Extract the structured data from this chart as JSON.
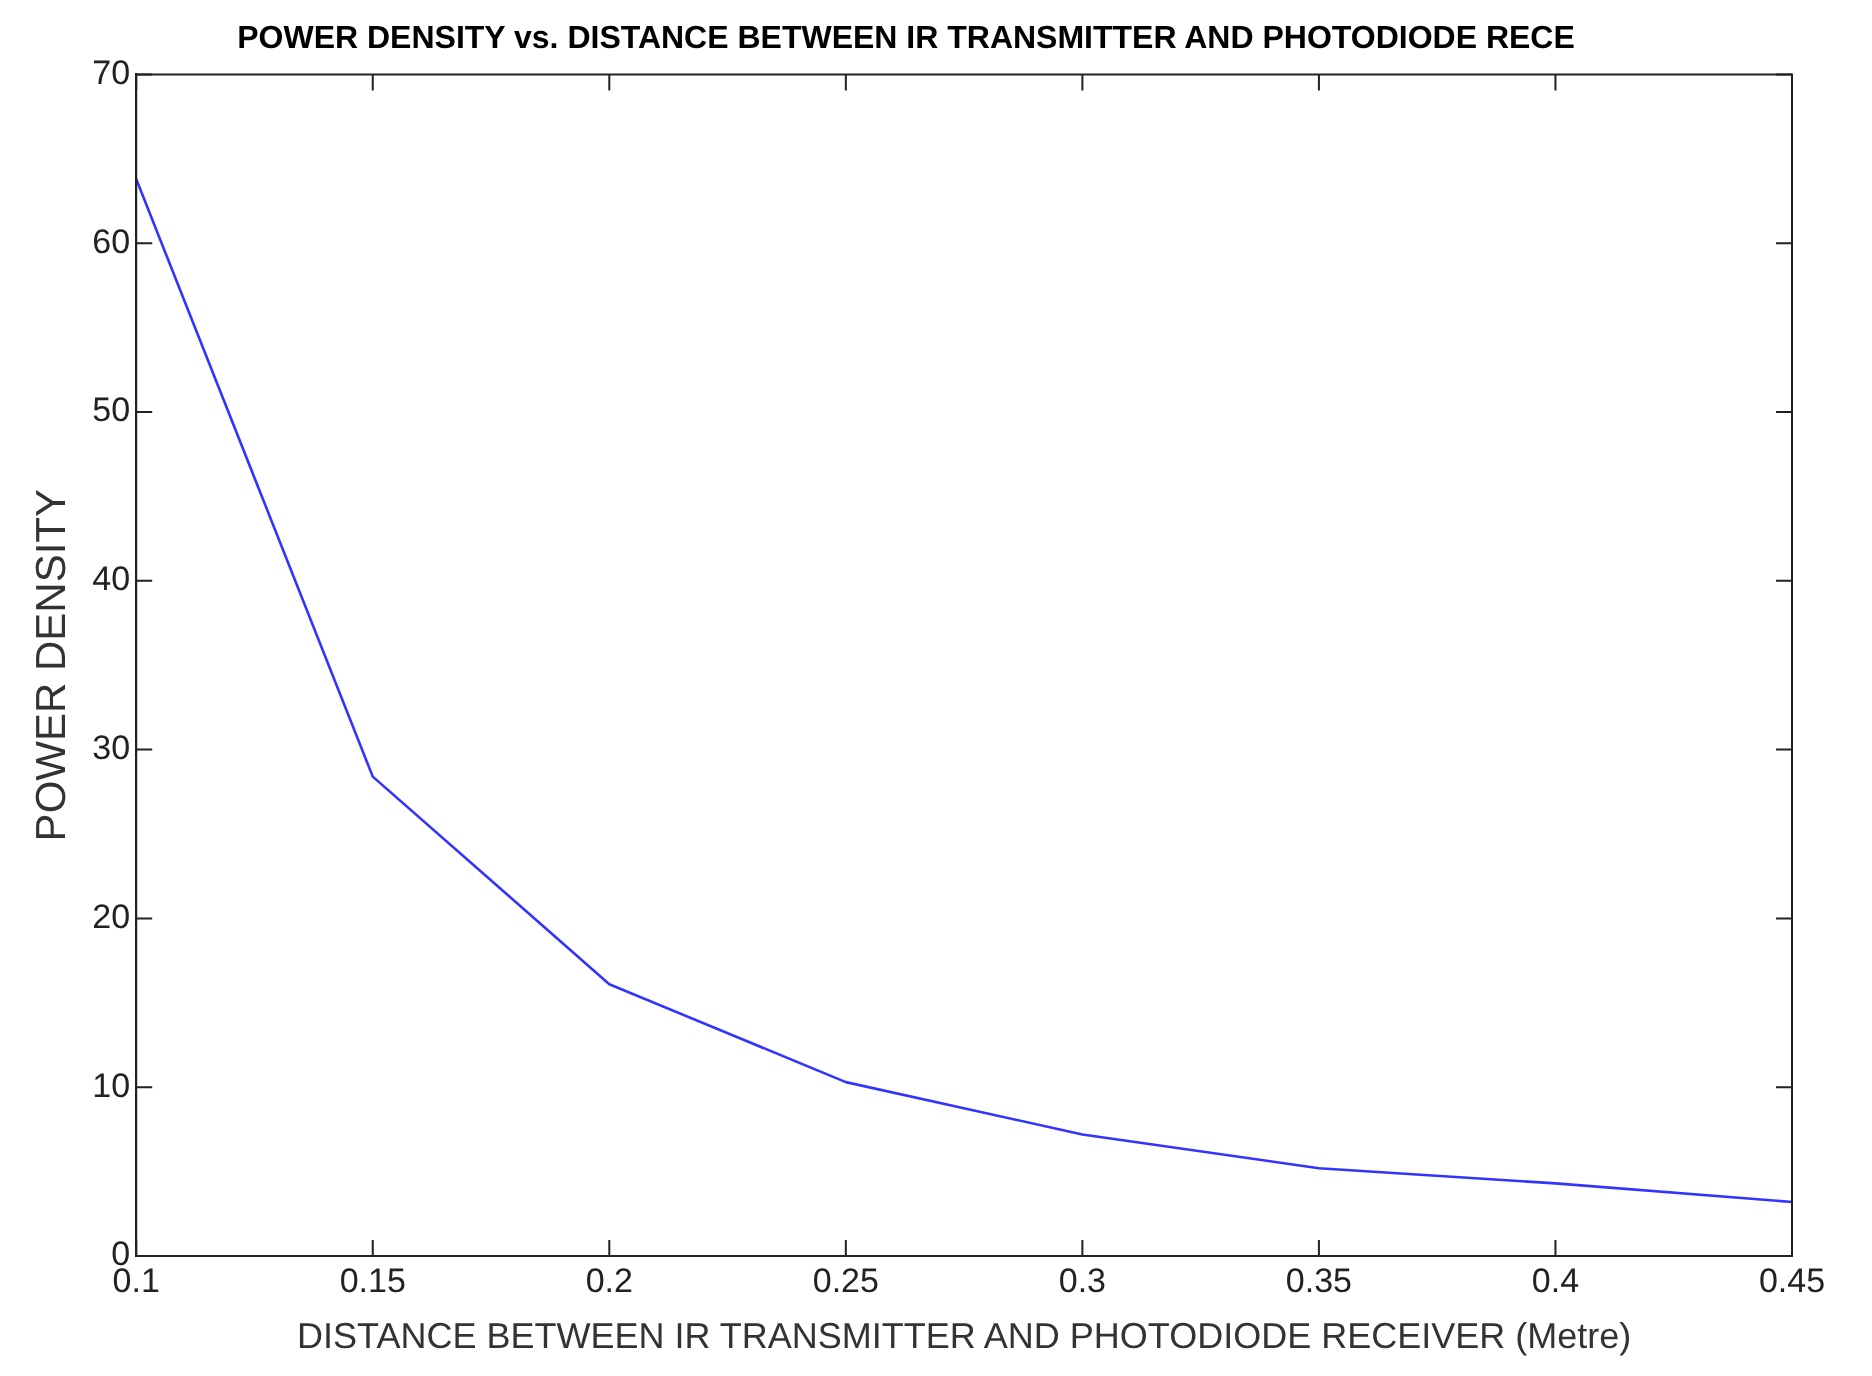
{
  "chart_data": {
    "type": "line",
    "title": "POWER DENSITY vs. DISTANCE BETWEEN IR TRANSMITTER AND PHOTODIODE RECE",
    "xlabel": "DISTANCE BETWEEN IR TRANSMITTER AND PHOTODIODE RECEIVER (Metre)",
    "ylabel": "POWER DENSITY",
    "x": [
      0.1,
      0.15,
      0.2,
      0.25,
      0.3,
      0.35,
      0.4,
      0.45
    ],
    "series": [
      {
        "color": "#3333ff",
        "values": [
          63.8,
          28.4,
          16.1,
          10.3,
          7.2,
          5.2,
          4.3,
          3.2
        ]
      }
    ],
    "xlim": [
      0.1,
      0.45
    ],
    "xticks": [
      0.1,
      0.15,
      0.2,
      0.25,
      0.3,
      0.35,
      0.4,
      0.45
    ],
    "ylim": [
      0,
      70
    ],
    "yticks": [
      0,
      10,
      20,
      30,
      40,
      50,
      60,
      70
    ],
    "grid": false,
    "legend": false,
    "marker": "none",
    "line_style": "solid"
  }
}
